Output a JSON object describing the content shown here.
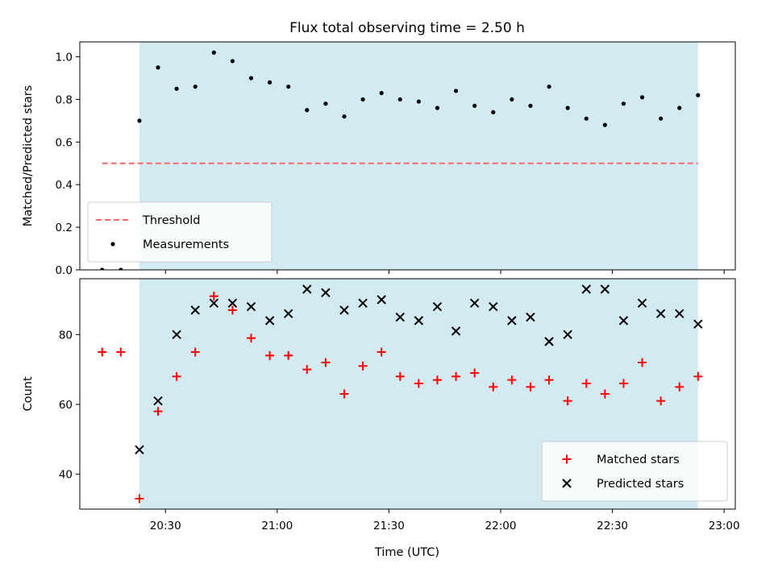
{
  "chart_data": {
    "title": "Flux total observing time = 2.50 h",
    "xlabel": "Time (UTC)",
    "x_tick_labels": [
      "20:30",
      "21:00",
      "21:30",
      "22:00",
      "22:30",
      "23:00"
    ],
    "x_tick_times": [
      "20:30",
      "21:00",
      "21:30",
      "22:00",
      "22:30",
      "23:00"
    ],
    "x_range": [
      "20:07",
      "23:03"
    ],
    "shaded_interval": [
      "20:23",
      "22:53"
    ],
    "colors": {
      "shade": "#add8e6",
      "threshold": "#ff6666",
      "measurement": "#000000",
      "matched": "#ff0000",
      "predicted": "#000000"
    },
    "panels": [
      {
        "type": "scatter",
        "ylabel": "Matched/Predicted stars",
        "ylim": [
          0,
          1.07
        ],
        "y_ticks": [
          0.0,
          0.2,
          0.4,
          0.6,
          0.8,
          1.0
        ],
        "y_tick_labels": [
          "0.0",
          "0.2",
          "0.4",
          "0.6",
          "0.8",
          "1.0"
        ],
        "legend_position": "lower-left",
        "threshold": {
          "name": "Threshold",
          "value": 0.5,
          "x_range": [
            "20:13",
            "22:53"
          ]
        },
        "series": [
          {
            "name": "Measurements",
            "marker": "dot",
            "x": [
              "20:13",
              "20:18",
              "20:23",
              "20:28",
              "20:33",
              "20:38",
              "20:43",
              "20:48",
              "20:53",
              "20:58",
              "21:03",
              "21:08",
              "21:13",
              "21:18",
              "21:23",
              "21:28",
              "21:33",
              "21:38",
              "21:43",
              "21:48",
              "21:53",
              "21:58",
              "22:03",
              "22:08",
              "22:13",
              "22:18",
              "22:23",
              "22:28",
              "22:33",
              "22:38",
              "22:43",
              "22:48",
              "22:53"
            ],
            "y": [
              0.0,
              0.0,
              0.7,
              0.95,
              0.85,
              0.86,
              1.02,
              0.98,
              0.9,
              0.88,
              0.86,
              0.75,
              0.78,
              0.72,
              0.8,
              0.83,
              0.8,
              0.79,
              0.76,
              0.84,
              0.77,
              0.74,
              0.8,
              0.77,
              0.86,
              0.76,
              0.71,
              0.68,
              0.78,
              0.81,
              0.71,
              0.76,
              0.82
            ]
          }
        ]
      },
      {
        "type": "scatter",
        "ylabel": "Count",
        "ylim": [
          30,
          96
        ],
        "y_ticks": [
          40,
          60,
          80
        ],
        "y_tick_labels": [
          "40",
          "60",
          "80"
        ],
        "legend_position": "lower-right",
        "series": [
          {
            "name": "Matched stars",
            "marker": "plus",
            "x": [
              "20:13",
              "20:18",
              "20:23",
              "20:28",
              "20:33",
              "20:38",
              "20:43",
              "20:48",
              "20:53",
              "20:58",
              "21:03",
              "21:08",
              "21:13",
              "21:18",
              "21:23",
              "21:28",
              "21:33",
              "21:38",
              "21:43",
              "21:48",
              "21:53",
              "21:58",
              "22:03",
              "22:08",
              "22:13",
              "22:18",
              "22:23",
              "22:28",
              "22:33",
              "22:38",
              "22:43",
              "22:48",
              "22:53"
            ],
            "y": [
              75,
              75,
              33,
              58,
              68,
              75,
              91,
              87,
              79,
              74,
              74,
              70,
              72,
              63,
              71,
              75,
              68,
              66,
              67,
              68,
              69,
              65,
              67,
              65,
              67,
              61,
              66,
              63,
              66,
              72,
              61,
              65,
              68
            ]
          },
          {
            "name": "Predicted stars",
            "marker": "x",
            "x": [
              "20:23",
              "20:28",
              "20:33",
              "20:38",
              "20:43",
              "20:48",
              "20:53",
              "20:58",
              "21:03",
              "21:08",
              "21:13",
              "21:18",
              "21:23",
              "21:28",
              "21:33",
              "21:38",
              "21:43",
              "21:48",
              "21:53",
              "21:58",
              "22:03",
              "22:08",
              "22:13",
              "22:18",
              "22:23",
              "22:28",
              "22:33",
              "22:38",
              "22:43",
              "22:48",
              "22:53"
            ],
            "y": [
              47,
              61,
              80,
              87,
              89,
              89,
              88,
              84,
              86,
              93,
              92,
              87,
              89,
              90,
              85,
              84,
              88,
              81,
              89,
              88,
              84,
              85,
              78,
              80,
              93,
              93,
              84,
              89,
              86,
              86,
              83
            ]
          }
        ]
      }
    ]
  }
}
